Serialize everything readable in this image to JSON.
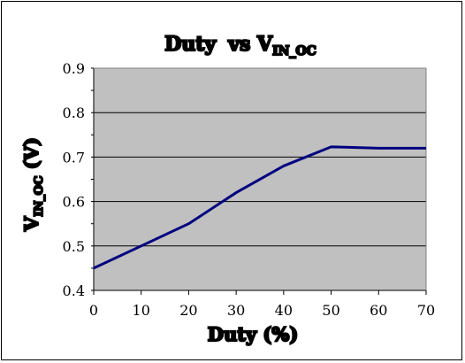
{
  "chart_data": {
    "type": "line",
    "title": {
      "main": "Duty",
      "mid": "vs V",
      "sub": "IN_OC"
    },
    "xlabel": "Duty (%)",
    "ylabel": {
      "main": "V",
      "sub": "IN_OC",
      "unit": " (V)"
    },
    "xlim": [
      0,
      70
    ],
    "ylim": [
      0.4,
      0.9
    ],
    "x": [
      0,
      10,
      20,
      30,
      40,
      50,
      60,
      70
    ],
    "xticks": [
      "0",
      "10",
      "20",
      "30",
      "40",
      "50",
      "60",
      "70"
    ],
    "yticks": [
      "0.4",
      "0.5",
      "0.6",
      "0.7",
      "0.8",
      "0.9"
    ],
    "series": [
      {
        "values": [
          0.45,
          0.5,
          0.55,
          0.62,
          0.68,
          0.723,
          0.72,
          0.72
        ]
      }
    ],
    "grid": true,
    "plot_background": "#c0c0c0",
    "line_color": "#000080"
  }
}
